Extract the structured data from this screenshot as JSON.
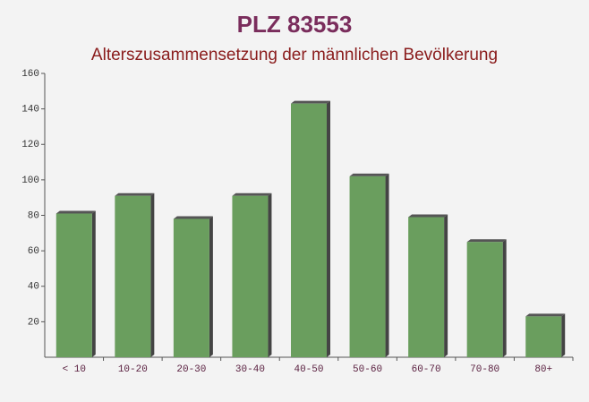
{
  "chart_data": {
    "type": "bar",
    "title": "PLZ 83553",
    "subtitle": "Alterszusammensetzung der männlichen Bevölkerung",
    "categories": [
      "< 10",
      "10-20",
      "20-30",
      "30-40",
      "40-50",
      "50-60",
      "60-70",
      "70-80",
      "80+"
    ],
    "values": [
      81,
      91,
      78,
      91,
      143,
      102,
      79,
      65,
      23
    ],
    "color": "#6a9e5e",
    "ylim": [
      0,
      160
    ],
    "yticks": [
      20,
      40,
      60,
      80,
      100,
      120,
      140,
      160
    ],
    "grid": false
  }
}
